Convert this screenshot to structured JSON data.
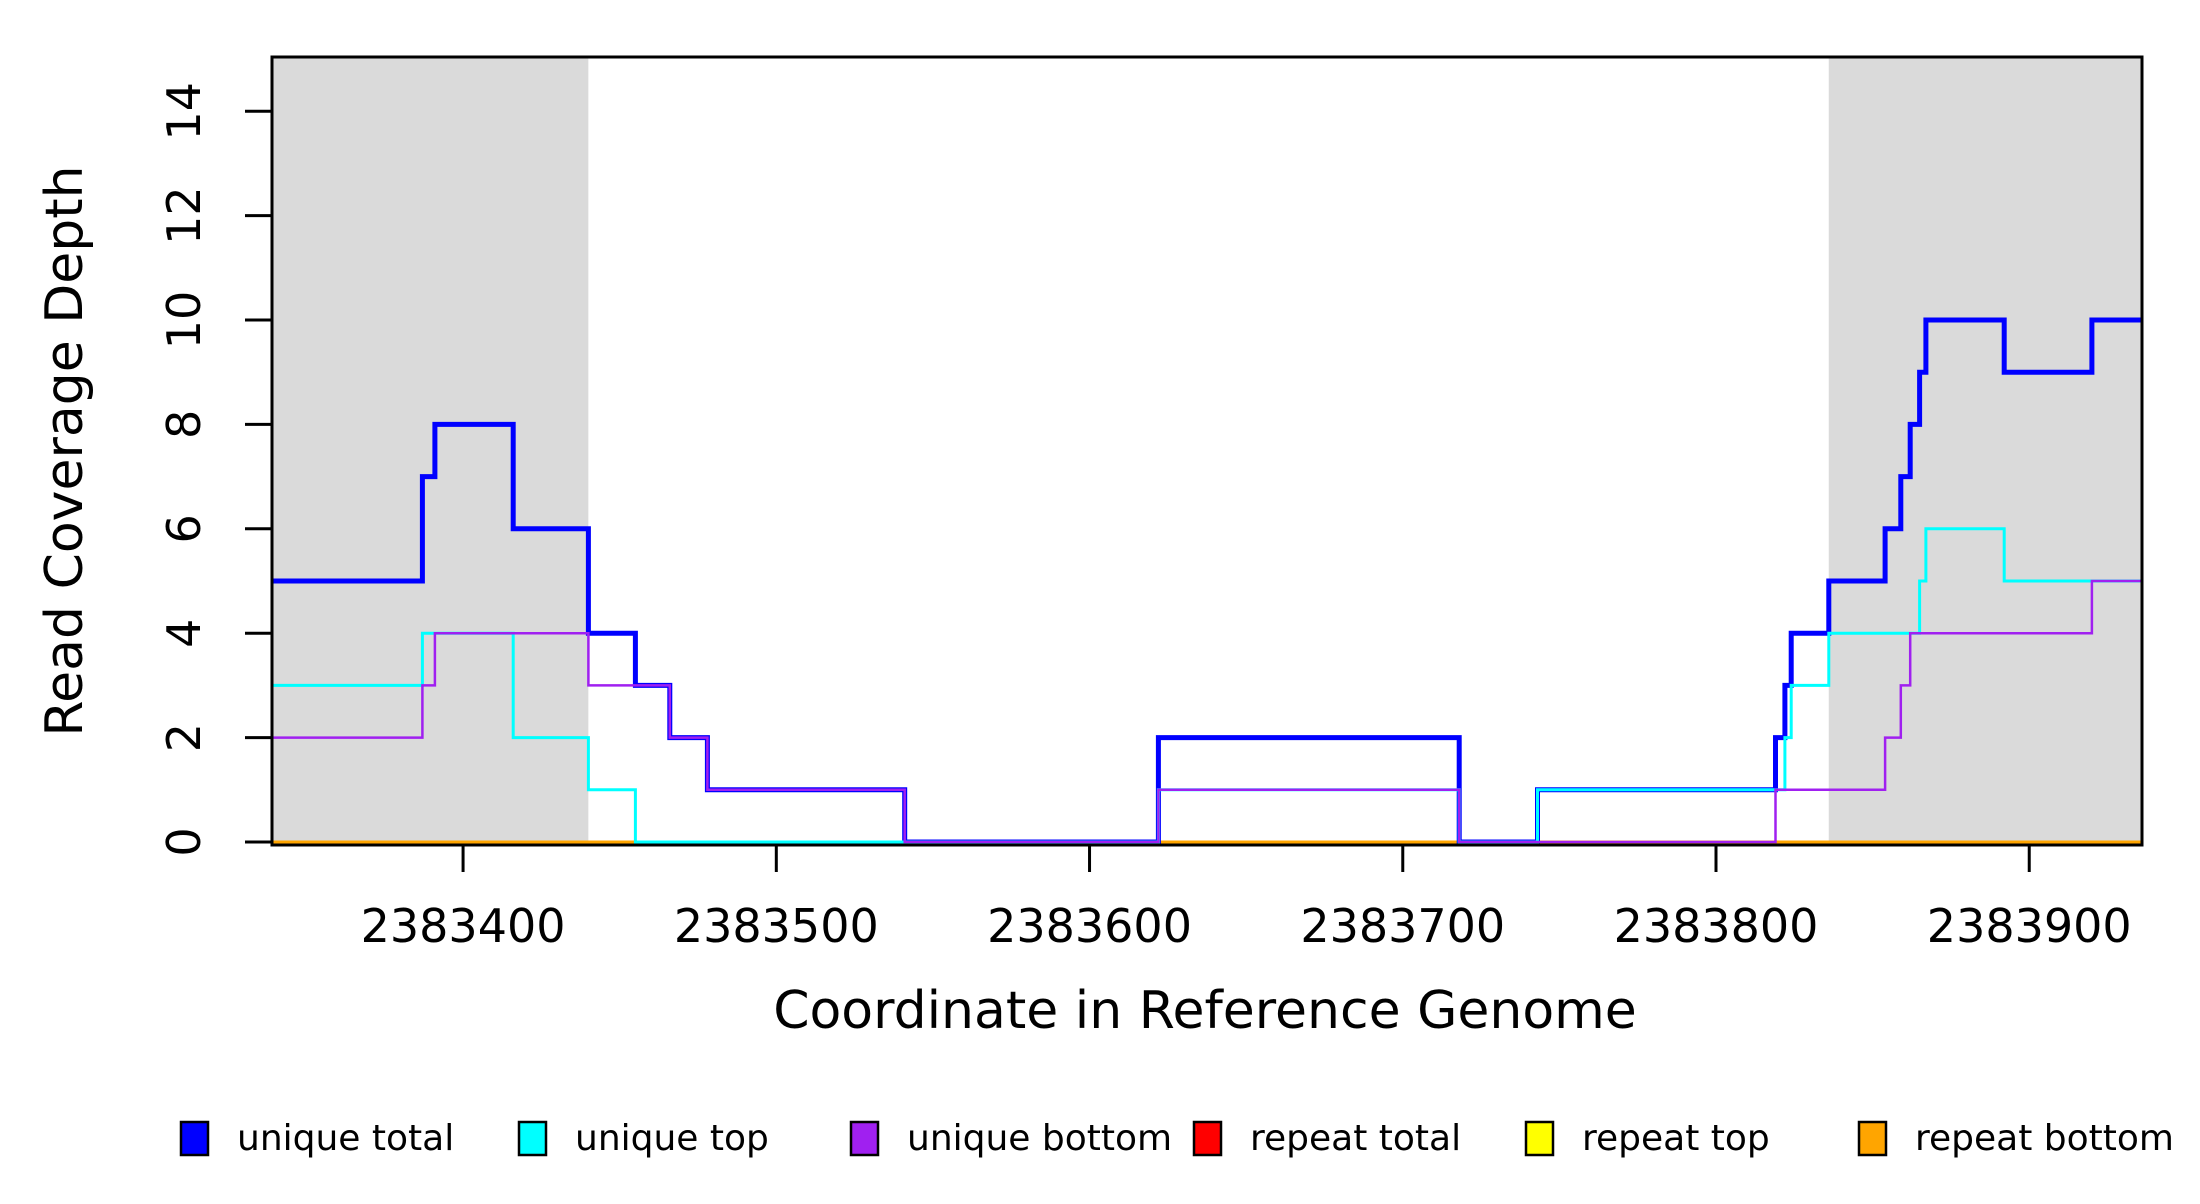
{
  "chart_data": {
    "type": "line",
    "subtype": "step",
    "title": "",
    "xlabel": "Coordinate in Reference Genome",
    "ylabel": "Read Coverage Depth",
    "xlim": [
      2383339,
      2383936
    ],
    "ylim": [
      0,
      15
    ],
    "x_ticks": [
      {
        "value": 2383400,
        "label": "2383400"
      },
      {
        "value": 2383500,
        "label": "2383500"
      },
      {
        "value": 2383600,
        "label": "2383600"
      },
      {
        "value": 2383700,
        "label": "2383700"
      },
      {
        "value": 2383800,
        "label": "2383800"
      },
      {
        "value": 2383900,
        "label": "2383900"
      }
    ],
    "y_ticks": [
      {
        "value": 0,
        "label": "0"
      },
      {
        "value": 2,
        "label": "2"
      },
      {
        "value": 4,
        "label": "4"
      },
      {
        "value": 6,
        "label": "6"
      },
      {
        "value": 8,
        "label": "8"
      },
      {
        "value": 10,
        "label": "10"
      },
      {
        "value": 12,
        "label": "12"
      },
      {
        "value": 14,
        "label": "14"
      }
    ],
    "grid": "off",
    "box": true,
    "background_color": "#FFFFFF",
    "axis_color": "#000000",
    "shaded_regions": [
      {
        "name": "left-gray-band",
        "x0": 2383339,
        "x1": 2383440,
        "color": "#DADADA"
      },
      {
        "name": "right-gray-band",
        "x0": 2383836,
        "x1": 2383936,
        "color": "#DADADA"
      }
    ],
    "series": [
      {
        "name": "unique total",
        "color": "#0000FF",
        "line_width": 5,
        "steps": [
          [
            2383339,
            5
          ],
          [
            2383387,
            7
          ],
          [
            2383391,
            8
          ],
          [
            2383416,
            6
          ],
          [
            2383440,
            4
          ],
          [
            2383455,
            3
          ],
          [
            2383466,
            2
          ],
          [
            2383478,
            1
          ],
          [
            2383541,
            0
          ],
          [
            2383622,
            2
          ],
          [
            2383718,
            0
          ],
          [
            2383743,
            1
          ],
          [
            2383819,
            2
          ],
          [
            2383822,
            3
          ],
          [
            2383824,
            4
          ],
          [
            2383836,
            5
          ],
          [
            2383854,
            6
          ],
          [
            2383859,
            7
          ],
          [
            2383862,
            8
          ],
          [
            2383865,
            9
          ],
          [
            2383867,
            10
          ],
          [
            2383892,
            9
          ],
          [
            2383920,
            10
          ]
        ]
      },
      {
        "name": "unique top",
        "color": "#00FFFF",
        "line_width": 3,
        "steps": [
          [
            2383339,
            3
          ],
          [
            2383387,
            4
          ],
          [
            2383416,
            2
          ],
          [
            2383440,
            1
          ],
          [
            2383455,
            0
          ],
          [
            2383622,
            1
          ],
          [
            2383718,
            0
          ],
          [
            2383743,
            1
          ],
          [
            2383822,
            2
          ],
          [
            2383824,
            3
          ],
          [
            2383836,
            4
          ],
          [
            2383865,
            5
          ],
          [
            2383867,
            6
          ],
          [
            2383892,
            5
          ]
        ]
      },
      {
        "name": "unique bottom",
        "color": "#A020F0",
        "line_width": 2.5,
        "steps": [
          [
            2383339,
            2
          ],
          [
            2383387,
            3
          ],
          [
            2383391,
            4
          ],
          [
            2383440,
            3
          ],
          [
            2383466,
            2
          ],
          [
            2383478,
            1
          ],
          [
            2383541,
            0
          ],
          [
            2383622,
            1
          ],
          [
            2383718,
            0
          ],
          [
            2383819,
            1
          ],
          [
            2383854,
            2
          ],
          [
            2383859,
            3
          ],
          [
            2383862,
            4
          ],
          [
            2383920,
            5
          ]
        ]
      },
      {
        "name": "repeat total",
        "color": "#FF0000",
        "line_width": 3,
        "steps": [
          [
            2383339,
            0
          ]
        ]
      },
      {
        "name": "repeat top",
        "color": "#FFFF00",
        "line_width": 3,
        "steps": [
          [
            2383339,
            0
          ]
        ]
      },
      {
        "name": "repeat bottom",
        "color": "#FFA500",
        "line_width": 3,
        "steps": [
          [
            2383339,
            0
          ]
        ]
      }
    ],
    "draw_order": [
      "repeat total",
      "repeat top",
      "repeat bottom",
      "unique total",
      "unique top",
      "unique bottom"
    ],
    "legend": {
      "position": "bottom",
      "items": [
        {
          "label": "unique total",
          "color": "#0000FF"
        },
        {
          "label": "unique top",
          "color": "#00FFFF"
        },
        {
          "label": "unique bottom",
          "color": "#A020F0"
        },
        {
          "label": "repeat total",
          "color": "#FF0000"
        },
        {
          "label": "repeat top",
          "color": "#FFFF00"
        },
        {
          "label": "repeat bottom",
          "color": "#FFA500"
        }
      ]
    }
  }
}
